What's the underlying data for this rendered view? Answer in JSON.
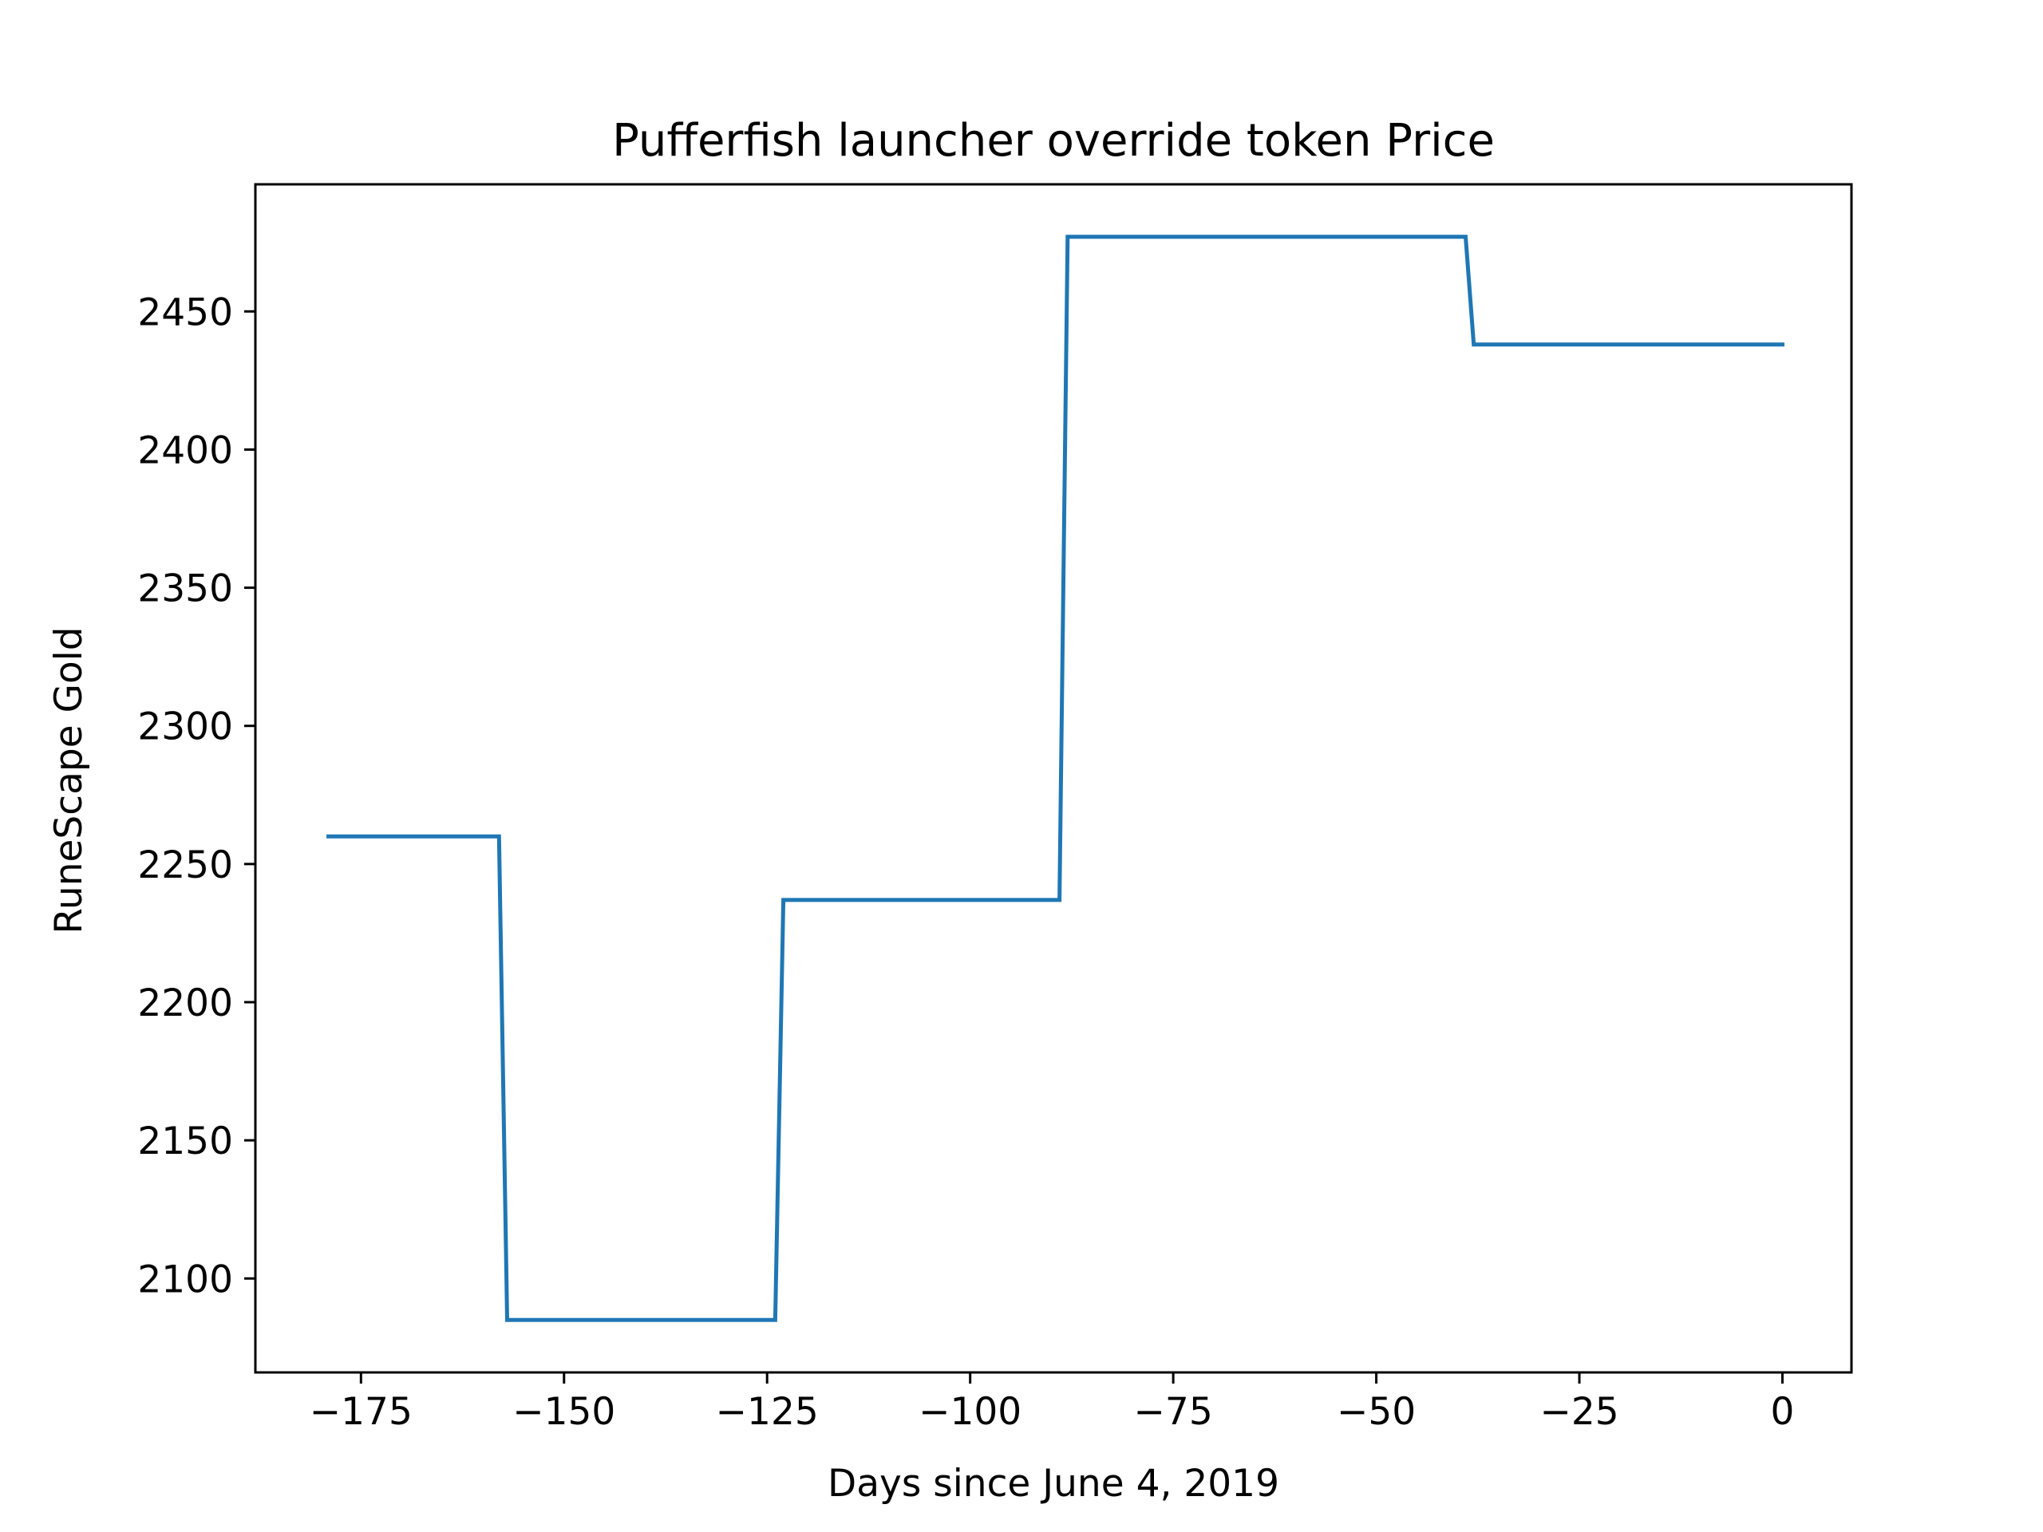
{
  "chart_data": {
    "type": "line",
    "title": "Pufferfish launcher override token Price",
    "xlabel": "Days since June 4, 2019",
    "ylabel": "RuneScape Gold",
    "xlim": [
      -188,
      8.5
    ],
    "ylim": [
      2066,
      2496
    ],
    "xticks": [
      -175,
      -150,
      -125,
      -100,
      -75,
      -50,
      -25,
      0
    ],
    "xtick_labels": [
      "−175",
      "−150",
      "−125",
      "−100",
      "−75",
      "−50",
      "−25",
      "0"
    ],
    "yticks": [
      2100,
      2150,
      2200,
      2250,
      2300,
      2350,
      2400,
      2450
    ],
    "ytick_labels": [
      "2100",
      "2150",
      "2200",
      "2250",
      "2300",
      "2350",
      "2400",
      "2450"
    ],
    "grid": false,
    "series": [
      {
        "color": "#1f77b4",
        "x": [
          -179,
          -158,
          -157,
          -124,
          -123,
          -89,
          -88,
          -39,
          -38,
          0
        ],
        "y": [
          2260,
          2260,
          2085,
          2085,
          2237,
          2237,
          2477,
          2477,
          2438,
          2438
        ]
      }
    ]
  }
}
